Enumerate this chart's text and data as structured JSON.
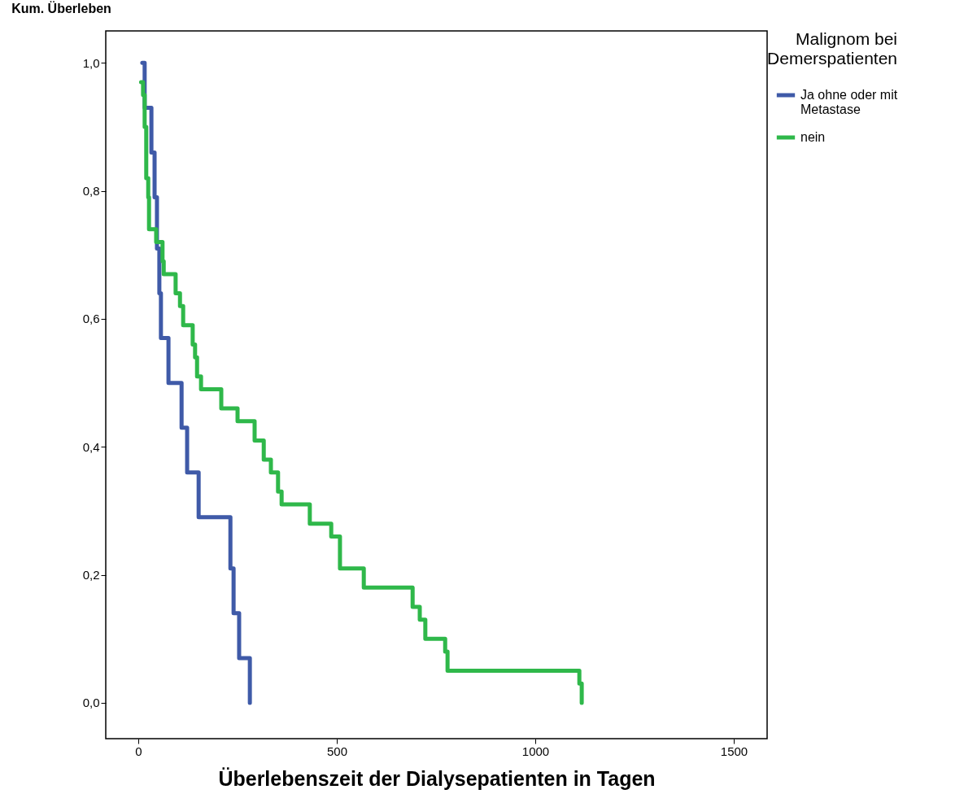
{
  "chart_data": {
    "type": "step",
    "xlabel": "Überlebenszeit der Dialysepatienten in Tagen",
    "ylabel": "Kum. Überleben",
    "legend_title": "Malignom bei Demerspatienten",
    "legend": "right",
    "grid": false,
    "xlim": [
      -82,
      1584
    ],
    "xticks": [
      0,
      500,
      1000,
      1500
    ],
    "ylim": [
      -0.056,
      1.05
    ],
    "yticks": [
      {
        "value": 0,
        "label": "0,0"
      },
      {
        "value": 0.2,
        "label": "0,2"
      },
      {
        "value": 0.4,
        "label": "0,4"
      },
      {
        "value": 0.6,
        "label": "0,6"
      },
      {
        "value": 0.8,
        "label": "0,8"
      },
      {
        "value": 1,
        "label": "1,0"
      }
    ],
    "series": [
      {
        "name": "Ja ohne oder mit Metastase",
        "color": "#3f5aa8",
        "x": [
          10,
          16,
          33,
          41,
          47,
          53,
          57,
          76,
          109,
          123,
          152,
          232,
          240,
          254,
          281
        ],
        "values": [
          1,
          0.93,
          0.86,
          0.79,
          0.71,
          0.64,
          0.57,
          0.5,
          0.43,
          0.36,
          0.29,
          0.21,
          0.14,
          0.07,
          0
        ]
      },
      {
        "name": "nein",
        "color": "#2fb84a",
        "x": [
          7,
          12,
          16,
          20,
          25,
          27,
          45,
          61,
          64,
          94,
          105,
          113,
          137,
          143,
          148,
          158,
          209,
          250,
          293,
          316,
          334,
          352,
          361,
          432,
          486,
          508,
          568,
          691,
          709,
          723,
          773,
          779,
          1111,
          1117
        ],
        "values": [
          0.97,
          0.95,
          0.9,
          0.82,
          0.79,
          0.74,
          0.72,
          0.69,
          0.67,
          0.64,
          0.62,
          0.59,
          0.56,
          0.54,
          0.51,
          0.49,
          0.46,
          0.44,
          0.41,
          0.38,
          0.36,
          0.33,
          0.31,
          0.28,
          0.26,
          0.21,
          0.18,
          0.15,
          0.13,
          0.1,
          0.08,
          0.05,
          0.03,
          0
        ]
      }
    ]
  }
}
